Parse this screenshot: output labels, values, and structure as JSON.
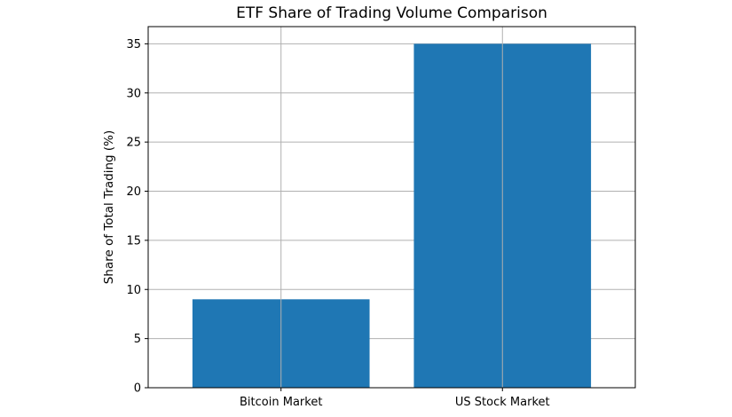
{
  "chart_data": {
    "type": "bar",
    "title": "ETF Share of Trading Volume Comparison",
    "xlabel": "",
    "ylabel": "Share of Total Trading (%)",
    "categories": [
      "Bitcoin Market",
      "US Stock Market"
    ],
    "values": [
      9,
      35
    ],
    "ylim": [
      0,
      36.75
    ],
    "yticks": [
      0,
      5,
      10,
      15,
      20,
      25,
      30,
      35
    ],
    "grid": true,
    "bar_color": "#1f77b4",
    "grid_color": "#b0b0b0"
  }
}
